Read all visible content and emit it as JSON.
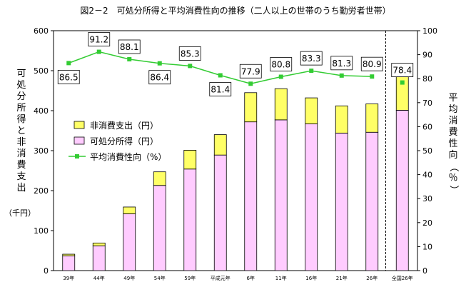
{
  "chart_data": {
    "type": "bar+line",
    "title": "図2－2　可処分所得と平均消費性向の推移（二人以上の世帯のうち勤労者世帯）",
    "categories": [
      "39年",
      "44年",
      "49年",
      "54年",
      "59年",
      "平成元年",
      "6年",
      "11年",
      "16年",
      "21年",
      "26年",
      "全国26年"
    ],
    "left_axis": {
      "label": "可処分所得と非消費支出",
      "unit": "（千円）",
      "ylim": [
        0,
        600
      ],
      "ticks": [
        "0",
        "100",
        "200",
        "300",
        "400",
        "500",
        "600"
      ]
    },
    "right_axis": {
      "label": "平均消費性向（％）",
      "ylim": [
        0,
        100
      ],
      "ticks": [
        "0",
        "10",
        "20",
        "30",
        "40",
        "50",
        "60",
        "70",
        "80",
        "90",
        "100"
      ]
    },
    "series": [
      {
        "name": "可処分所得（円）",
        "kind": "bar",
        "color": "#ffccff",
        "values": [
          37,
          62,
          142,
          213,
          254,
          289,
          372,
          377,
          367,
          344,
          346,
          401
        ]
      },
      {
        "name": "非消費支出（円）",
        "kind": "bar-stack",
        "color": "#ffff66",
        "values": [
          4,
          7,
          17,
          34,
          47,
          51,
          73,
          78,
          65,
          68,
          71,
          84
        ]
      },
      {
        "name": "平均消費性向（%）",
        "kind": "line",
        "color": "#33cc33",
        "values": [
          86.5,
          91.2,
          88.1,
          86.4,
          85.3,
          81.4,
          77.9,
          80.8,
          83.3,
          81.3,
          80.9,
          78.4
        ],
        "labels": [
          "86.5",
          "91.2",
          "88.1",
          "86.4",
          "85.3",
          "81.4",
          "77.9",
          "80.8",
          "83.3",
          "81.3",
          "80.9",
          "78.4"
        ]
      }
    ],
    "legend_position": "middle-left",
    "grid": false
  }
}
